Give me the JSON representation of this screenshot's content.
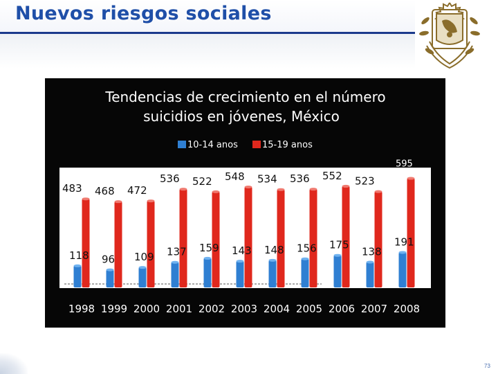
{
  "slide": {
    "title": "Nuevos riesgos sociales",
    "page_number": "73",
    "colors": {
      "title": "#1f4fa8",
      "accent_bar": "#1b3a8c",
      "logo": "#8a6d2b"
    },
    "logo_icon": "unam-crest-icon"
  },
  "chart_data": {
    "type": "bar",
    "title_lines": [
      "Tendencias de crecimiento en el número",
      "suicidios en jóvenes, México"
    ],
    "categories": [
      "1998",
      "1999",
      "2000",
      "2001",
      "2002",
      "2003",
      "2004",
      "2005",
      "2006",
      "2007",
      "2008"
    ],
    "series": [
      {
        "name": "10-14 anos",
        "color": "#2f7fd2",
        "values": [
          118,
          96,
          109,
          137,
          159,
          143,
          148,
          156,
          175,
          138,
          191
        ]
      },
      {
        "name": "15-19 anos",
        "color": "#e0281d",
        "values": [
          483,
          468,
          472,
          536,
          522,
          548,
          534,
          536,
          552,
          523,
          595
        ]
      }
    ],
    "xlabel": "",
    "ylabel": "",
    "ylim": [
      0,
      650
    ],
    "grid": false,
    "legend_position": "top-center",
    "background": "#060606",
    "plot_background": "#ffffff"
  }
}
